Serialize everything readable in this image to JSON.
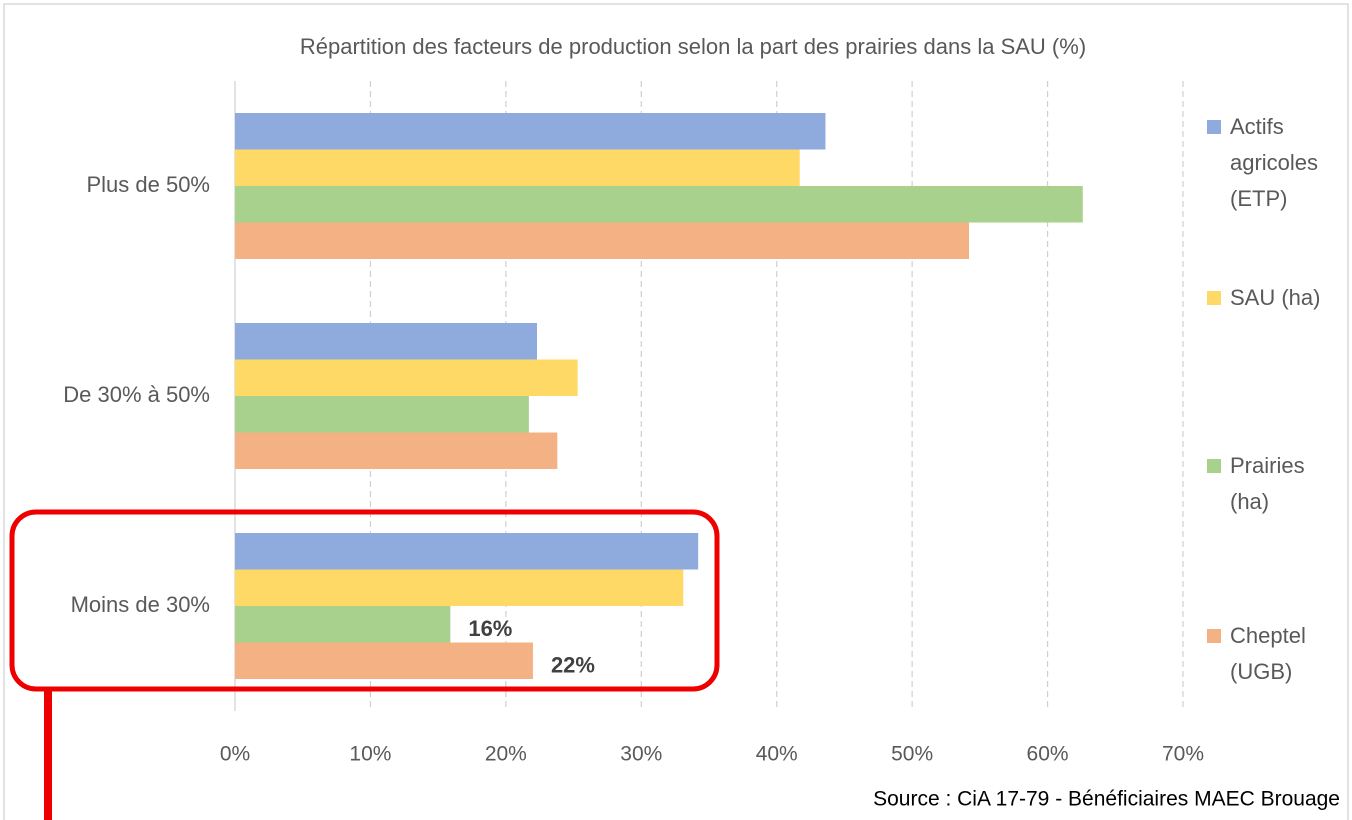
{
  "chart_data": {
    "type": "hbar",
    "title": "Répartition des facteurs de production selon la part des prairies dans la SAU (%)",
    "categories": [
      "Plus de 50%",
      "De 30% à 50%",
      "Moins de 30%"
    ],
    "series": [
      {
        "name": "Actifs agricoles (ETP)",
        "color": "#8faadc",
        "values": [
          43.6,
          22.3,
          34.2
        ]
      },
      {
        "name": "SAU (ha)",
        "color": "#ffd966",
        "values": [
          41.7,
          25.3,
          33.1
        ]
      },
      {
        "name": "Prairies (ha)",
        "color": "#a9d18e",
        "values": [
          62.6,
          21.7,
          15.9
        ],
        "value_labels": [
          null,
          null,
          "16%"
        ]
      },
      {
        "name": "Cheptel (UGB)",
        "color": "#f4b183",
        "values": [
          54.2,
          23.8,
          22.0
        ],
        "value_labels": [
          null,
          null,
          "22%"
        ]
      }
    ],
    "xlim": [
      0,
      70
    ],
    "xticks": [
      {
        "value": 0,
        "label": "0%"
      },
      {
        "value": 10,
        "label": "10%"
      },
      {
        "value": 20,
        "label": "20%"
      },
      {
        "value": 30,
        "label": "30%"
      },
      {
        "value": 40,
        "label": "40%"
      },
      {
        "value": 50,
        "label": "50%"
      },
      {
        "value": 60,
        "label": "60%"
      },
      {
        "value": 70,
        "label": "70%"
      }
    ],
    "grid": true,
    "legend": "right",
    "source": "Source : CiA 17-79 - Bénéficiaires MAEC Brouage"
  }
}
